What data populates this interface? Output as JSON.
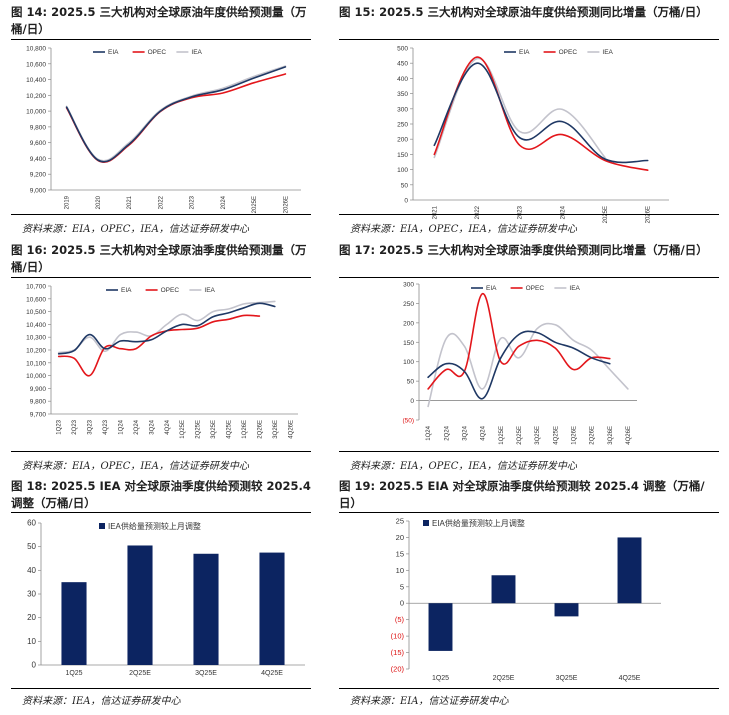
{
  "figures": [
    {
      "title": "图 14:  2025.5 三大机构对全球原油年度供给预测量（万桶/日）",
      "source": "资料来源：EIA，OPEC，IEA，信达证券研发中心",
      "chart_data": {
        "type": "line",
        "categories": [
          "2019",
          "2020",
          "2021",
          "2022",
          "2023",
          "2024",
          "2025E",
          "2026E"
        ],
        "ylim": [
          9000,
          10800
        ],
        "yticks": [
          9000,
          9200,
          9400,
          9600,
          9800,
          10000,
          10200,
          10400,
          10600,
          10800
        ],
        "ytick_labels": [
          "9,000",
          "9,200",
          "9,400",
          "9,600",
          "9,800",
          "10,000",
          "10,200",
          "10,400",
          "10,600",
          "10,800"
        ],
        "legend": "top-left",
        "series": [
          {
            "name": "EIA",
            "color": "#1f3864",
            "values": [
              10050,
              9380,
              9580,
              10000,
              10180,
              10270,
              10420,
              10560
            ]
          },
          {
            "name": "OPEC",
            "color": "#e3161b",
            "values": [
              10040,
              9375,
              9570,
              9995,
              10170,
              10230,
              10360,
              10470
            ]
          },
          {
            "name": "IEA",
            "color": "#c3c3cc",
            "values": [
              10060,
              9390,
              9600,
              10010,
              10190,
              10290,
              10440,
              10570
            ]
          }
        ]
      }
    },
    {
      "title": "图 15:  2025.5 三大机构对全球原油年度供给预测同比增量（万桶/日）",
      "source": "资料来源：EIA，OPEC，IEA，信达证券研发中心",
      "chart_data": {
        "type": "line",
        "categories": [
          "2021",
          "2022",
          "2023",
          "2024",
          "2025E",
          "2026E"
        ],
        "ylim": [
          0,
          500
        ],
        "yticks": [
          0,
          50,
          100,
          150,
          200,
          250,
          300,
          350,
          400,
          450,
          500
        ],
        "ytick_labels": [
          "0",
          "50",
          "100",
          "150",
          "200",
          "250",
          "300",
          "350",
          "400",
          "450",
          "500"
        ],
        "legend": "top-right",
        "series": [
          {
            "name": "EIA",
            "color": "#1f3864",
            "values": [
              180,
              450,
              205,
              258,
              135,
              130
            ]
          },
          {
            "name": "OPEC",
            "color": "#e3161b",
            "values": [
              150,
              470,
              180,
              215,
              130,
              98
            ]
          },
          {
            "name": "IEA",
            "color": "#c3c3cc",
            "values": [
              140,
              465,
              225,
              298,
              140,
              null
            ]
          }
        ]
      }
    },
    {
      "title": "图 16:  2025.5 三大机构对全球原油季度供给预测量（万桶/日）",
      "source": "资料来源：EIA，OPEC，IEA，信达证券研发中心",
      "chart_data": {
        "type": "line",
        "categories": [
          "1Q23",
          "2Q23",
          "3Q23",
          "4Q23",
          "1Q24",
          "2Q24",
          "3Q24",
          "4Q24",
          "1Q25E",
          "2Q25E",
          "3Q25E",
          "4Q25E",
          "1Q26E",
          "2Q26E",
          "3Q26E",
          "4Q26E"
        ],
        "ylim": [
          9700,
          10700
        ],
        "yticks": [
          9700,
          9800,
          9900,
          10000,
          10100,
          10200,
          10300,
          10400,
          10500,
          10600,
          10700
        ],
        "ytick_labels": [
          "9,700",
          "9,800",
          "9,900",
          "10,000",
          "10,100",
          "10,200",
          "10,300",
          "10,400",
          "10,500",
          "10,600",
          "10,700"
        ],
        "legend": "top-center",
        "series": [
          {
            "name": "EIA",
            "color": "#1f3864",
            "values": [
              10170,
              10195,
              10320,
              10210,
              10270,
              10265,
              10280,
              10350,
              10400,
              10390,
              10460,
              10490,
              10530,
              10565,
              10540,
              null
            ]
          },
          {
            "name": "OPEC",
            "color": "#e3161b",
            "values": [
              10150,
              10135,
              10000,
              10220,
              10210,
              10210,
              10310,
              10350,
              10360,
              10370,
              10420,
              10440,
              10470,
              10465,
              null,
              null
            ]
          },
          {
            "name": "IEA",
            "color": "#c3c3cc",
            "values": [
              10180,
              10200,
              10300,
              10190,
              10320,
              10340,
              10310,
              10400,
              10480,
              10430,
              10500,
              10520,
              10560,
              10570,
              10580,
              null
            ]
          }
        ]
      }
    },
    {
      "title": "图 17:  2025.5 三大机构对全球原油季度供给预测同比增量（万桶/日）",
      "source": "资料来源：EIA，OPEC，IEA，信达证券研发中心",
      "chart_data": {
        "type": "line",
        "categories": [
          "1Q24",
          "2Q24",
          "3Q24",
          "4Q24",
          "1Q25E",
          "2Q25E",
          "3Q25E",
          "4Q25E",
          "1Q26E",
          "2Q26E",
          "3Q26E",
          "4Q26E"
        ],
        "ylim": [
          -50,
          300
        ],
        "yticks": [
          -50,
          0,
          50,
          100,
          150,
          200,
          250,
          300
        ],
        "ytick_labels": [
          "(50)",
          "0",
          "50",
          "100",
          "150",
          "200",
          "250",
          "300"
        ],
        "legend": "top-center",
        "series": [
          {
            "name": "EIA",
            "color": "#1f3864",
            "values": [
              60,
              95,
              75,
              5,
              110,
              170,
              175,
              150,
              135,
              110,
              95,
              null
            ]
          },
          {
            "name": "OPEC",
            "color": "#e3161b",
            "values": [
              30,
              80,
              75,
              275,
              100,
              140,
              155,
              135,
              80,
              110,
              108,
              null
            ]
          },
          {
            "name": "IEA",
            "color": "#c3c3cc",
            "values": [
              -15,
              160,
              140,
              30,
              160,
              110,
              185,
              195,
              155,
              130,
              80,
              30
            ]
          }
        ]
      }
    },
    {
      "title": "图 18:  2025.5 IEA 对全球原油季度供给预测较 2025.4 调整（万桶/日）",
      "source": "资料来源：IEA，信达证券研发中心",
      "chart_data": {
        "type": "bar",
        "categories": [
          "1Q25",
          "2Q25E",
          "3Q25E",
          "4Q25E"
        ],
        "ylim": [
          0,
          60
        ],
        "yticks": [
          0,
          10,
          20,
          30,
          40,
          50,
          60
        ],
        "ytick_labels": [
          "0",
          "10",
          "20",
          "30",
          "40",
          "50",
          "60"
        ],
        "legend": "top-left",
        "series": [
          {
            "name": "IEA供给量预测较上月调整",
            "color": "#0c2461",
            "values": [
              35,
              50.5,
              47,
              47.5
            ]
          }
        ]
      }
    },
    {
      "title": "图 19:  2025.5 EIA 对全球原油季度供给预测较 2025.4 调整（万桶/日）",
      "source": "资料来源：EIA，信达证券研发中心",
      "chart_data": {
        "type": "bar",
        "categories": [
          "1Q25",
          "2Q25E",
          "3Q25E",
          "4Q25E"
        ],
        "ylim": [
          -20,
          25
        ],
        "yticks": [
          -20,
          -15,
          -10,
          -5,
          0,
          5,
          10,
          15,
          20,
          25
        ],
        "ytick_labels": [
          "(20)",
          "(15)",
          "(10)",
          "(5)",
          "0",
          "5",
          "10",
          "15",
          "20",
          "25"
        ],
        "legend": "top-left",
        "series": [
          {
            "name": "EIA供给量预测较上月调整",
            "color": "#0c2461",
            "values": [
              -14.5,
              8.5,
              -4,
              20
            ]
          }
        ]
      }
    }
  ]
}
